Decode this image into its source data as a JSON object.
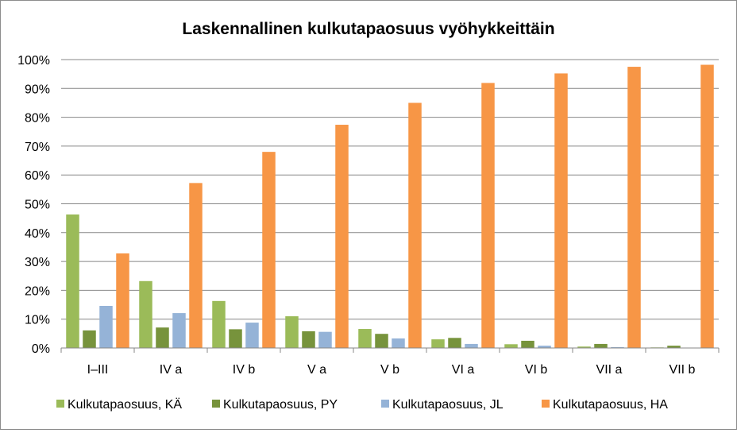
{
  "chart_data": {
    "type": "bar",
    "title": "Laskennallinen kulkutapaosuus vyöhykkeittäin",
    "categories": [
      "I–III",
      "IV a",
      "IV b",
      "V a",
      "V b",
      "VI a",
      "VI b",
      "VII a",
      "VII b"
    ],
    "ylim": [
      0,
      100
    ],
    "yticks": [
      0,
      10,
      20,
      30,
      40,
      50,
      60,
      70,
      80,
      90,
      100
    ],
    "ytick_format": "%",
    "grid": true,
    "legend_position": "bottom",
    "series": [
      {
        "name": "Kulkutapaosuus, KÄ",
        "color": "#9bbb59",
        "values": [
          46.3,
          23.2,
          16.3,
          11.0,
          6.6,
          3.0,
          1.3,
          0.5,
          0.2
        ]
      },
      {
        "name": "Kulkutapaosuus, PY",
        "color": "#77933c",
        "values": [
          6.1,
          7.1,
          6.5,
          5.8,
          4.9,
          3.5,
          2.5,
          1.4,
          0.8
        ]
      },
      {
        "name": "Kulkutapaosuus, JL",
        "color": "#95b3d7",
        "values": [
          14.6,
          12.1,
          8.8,
          5.6,
          3.3,
          1.4,
          0.8,
          0.3,
          0.1
        ]
      },
      {
        "name": "Kulkutapaosuus, HA",
        "color": "#f79646",
        "values": [
          32.8,
          57.2,
          68.0,
          77.4,
          85.0,
          91.9,
          95.2,
          97.5,
          98.2
        ]
      }
    ]
  }
}
